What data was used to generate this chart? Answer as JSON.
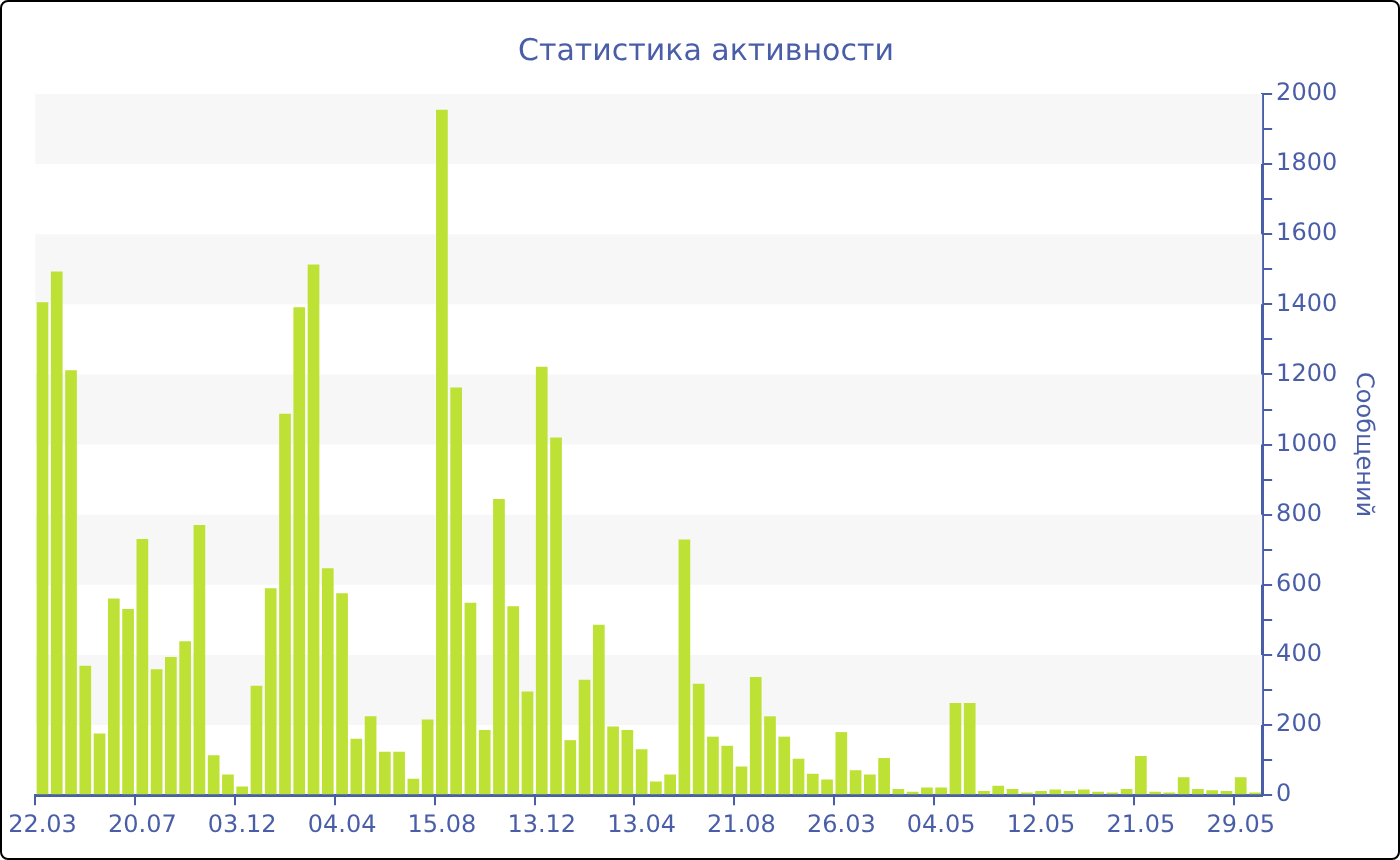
{
  "chart_data": {
    "type": "bar",
    "title": "Статистика активности",
    "ylabel": "Сообщений",
    "color": "#bde135",
    "categories": [
      "22.03",
      null,
      null,
      null,
      null,
      null,
      null,
      "20.07",
      null,
      null,
      null,
      null,
      null,
      null,
      "03.12",
      null,
      null,
      null,
      null,
      null,
      null,
      "04.04",
      null,
      null,
      null,
      null,
      null,
      null,
      "15.08",
      null,
      null,
      null,
      null,
      null,
      null,
      "13.12",
      null,
      null,
      null,
      null,
      null,
      null,
      "13.04",
      null,
      null,
      null,
      null,
      null,
      null,
      "21.08",
      null,
      null,
      null,
      null,
      null,
      null,
      "26.03",
      null,
      null,
      null,
      null,
      null,
      null,
      "04.05",
      null,
      null,
      null,
      null,
      null,
      null,
      "12.05",
      null,
      null,
      null,
      null,
      null,
      null,
      "21.05",
      null,
      null,
      null,
      null,
      null,
      null,
      "29.05",
      null
    ],
    "values": [
      1406,
      1494,
      1212,
      369,
      176,
      561,
      531,
      731,
      359,
      394,
      439,
      771,
      114,
      59,
      25,
      312,
      590,
      1088,
      1392,
      1514,
      647,
      576,
      161,
      225,
      124,
      124,
      47,
      216,
      1955,
      1163,
      549,
      186,
      845,
      539,
      296,
      1222,
      1020,
      157,
      329,
      486,
      196,
      186,
      131,
      39,
      59,
      729,
      318,
      167,
      141,
      82,
      337,
      225,
      167,
      104,
      61,
      45,
      180,
      71,
      59,
      106,
      18,
      10,
      22,
      22,
      263,
      263,
      12,
      27,
      18,
      8,
      12,
      16,
      12,
      16,
      10,
      8,
      18,
      112,
      10,
      8,
      51,
      18,
      14,
      12,
      51,
      8
    ],
    "ylim": [
      0,
      2000
    ],
    "yticks": [
      0,
      {
        "value": 100,
        "label": null
      },
      200,
      {
        "value": 300,
        "label": null
      },
      400,
      {
        "value": 500,
        "label": null
      },
      600,
      {
        "value": 700,
        "label": null
      },
      800,
      {
        "value": 900,
        "label": null
      },
      1000,
      {
        "value": 1100,
        "label": null
      },
      1200,
      {
        "value": 1300,
        "label": null
      },
      1400,
      {
        "value": 1500,
        "label": null
      },
      1600,
      {
        "value": 1700,
        "label": null
      },
      1800,
      {
        "value": 1900,
        "label": null
      },
      2000
    ]
  }
}
